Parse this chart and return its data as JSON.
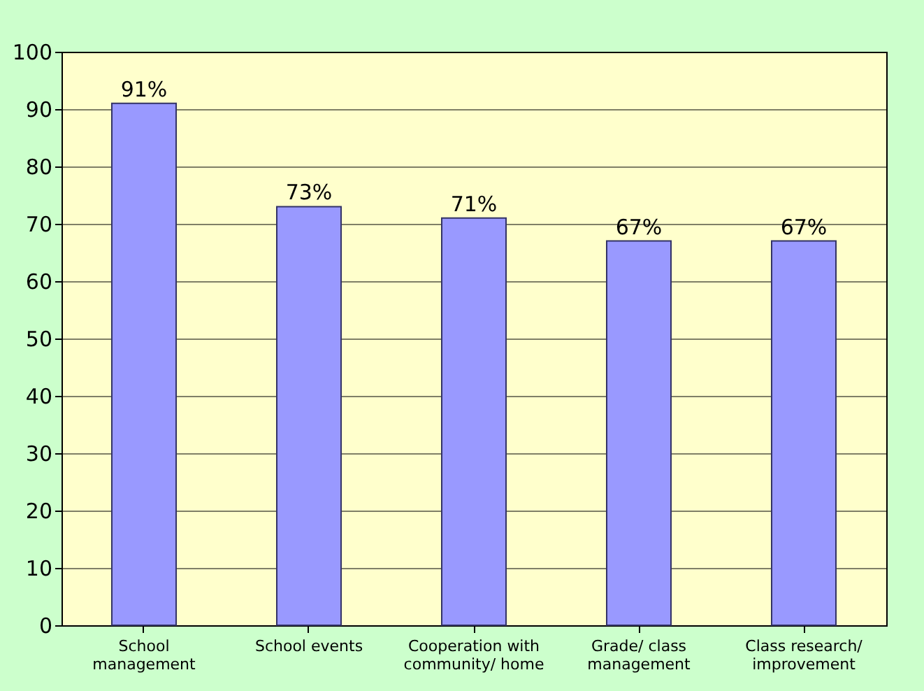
{
  "chart_data": {
    "type": "bar",
    "categories": [
      "School management",
      "School events",
      "Cooperation with community/ home",
      "Grade/ class management",
      "Class research/ improvement"
    ],
    "values": [
      91,
      73,
      71,
      67,
      67
    ],
    "value_labels": [
      "91%",
      "73%",
      "71%",
      "67%",
      "67%"
    ],
    "color": "#9999ff",
    "ylim": [
      0,
      100
    ],
    "yticks": [
      0,
      10,
      20,
      30,
      40,
      50,
      60,
      70,
      80,
      90,
      100
    ],
    "grid": "y"
  }
}
